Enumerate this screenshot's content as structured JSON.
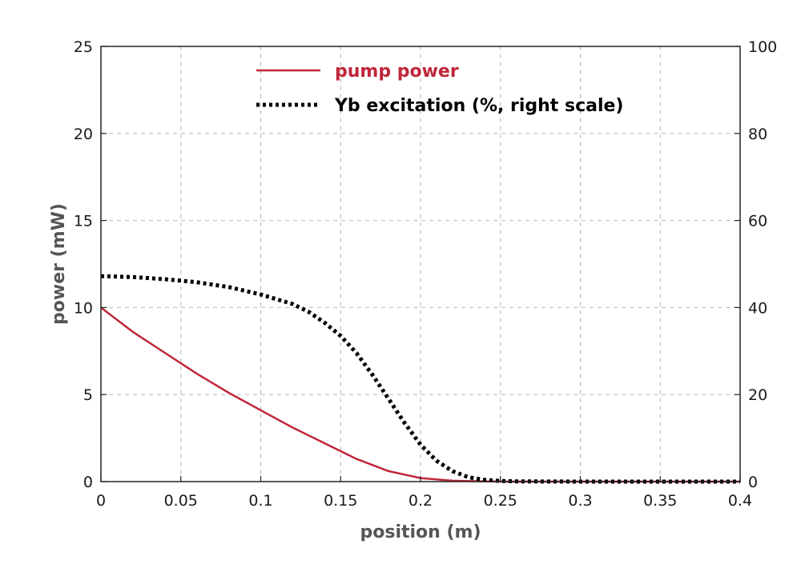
{
  "chart_data": {
    "type": "line",
    "xlabel": "position (m)",
    "ylabel": "power (mW)",
    "y2label": "",
    "xlim": [
      0,
      0.4
    ],
    "ylim": [
      0,
      25
    ],
    "y2lim": [
      0,
      100
    ],
    "x_ticks": [
      "0",
      "0.05",
      "0.1",
      "0.15",
      "0.2",
      "0.25",
      "0.3",
      "0.35",
      "0.4"
    ],
    "y_ticks": [
      "0",
      "5",
      "10",
      "15",
      "20",
      "25"
    ],
    "y2_ticks": [
      "0",
      "20",
      "40",
      "60",
      "80",
      "100"
    ],
    "grid": true,
    "legend_position": "top-center",
    "series": [
      {
        "name": "pump power",
        "axis": "left",
        "style": "solid",
        "color": "#c0263a",
        "x": [
          0,
          0.02,
          0.04,
          0.06,
          0.08,
          0.1,
          0.12,
          0.14,
          0.16,
          0.18,
          0.2,
          0.22,
          0.24,
          0.26,
          0.3,
          0.35,
          0.4
        ],
        "y": [
          10.0,
          8.6,
          7.4,
          6.2,
          5.1,
          4.1,
          3.1,
          2.2,
          1.3,
          0.6,
          0.2,
          0.05,
          0.01,
          0,
          0,
          0,
          0
        ]
      },
      {
        "name": "Yb excitation (%, right scale)",
        "axis": "right",
        "style": "dotted",
        "color": "#000000",
        "x": [
          0,
          0.02,
          0.04,
          0.06,
          0.08,
          0.1,
          0.12,
          0.13,
          0.14,
          0.15,
          0.16,
          0.17,
          0.18,
          0.19,
          0.2,
          0.21,
          0.22,
          0.23,
          0.24,
          0.25,
          0.26,
          0.3,
          0.35,
          0.4
        ],
        "y": [
          47.2,
          47.0,
          46.5,
          45.8,
          44.7,
          43.0,
          40.8,
          39.0,
          36.5,
          33.5,
          29.5,
          24.5,
          19.0,
          13.5,
          8.5,
          4.8,
          2.4,
          1.0,
          0.4,
          0.15,
          0.05,
          0,
          0,
          0
        ]
      }
    ]
  }
}
